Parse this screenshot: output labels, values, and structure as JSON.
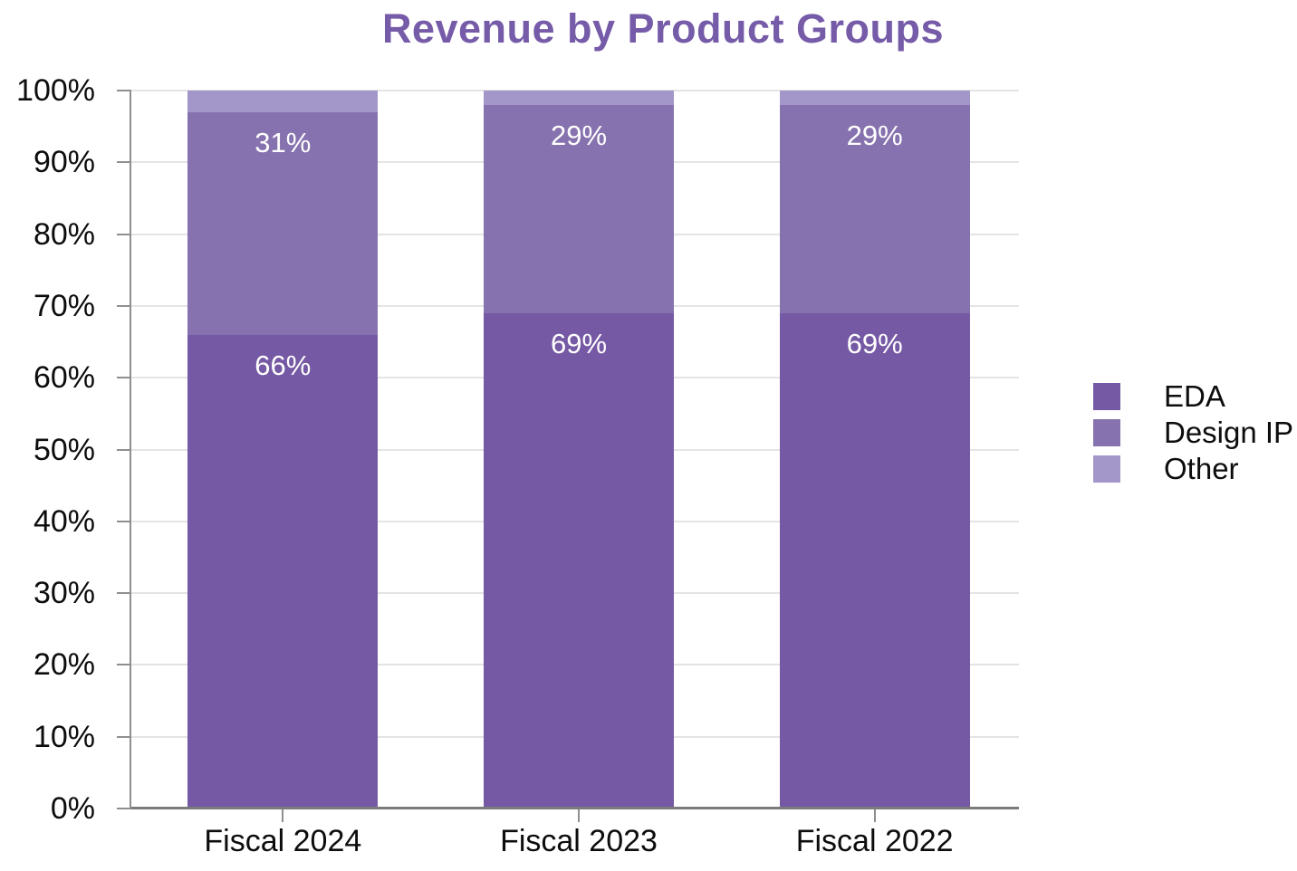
{
  "title": {
    "text": "Revenue by Product Groups",
    "color": "#755BA8"
  },
  "chart_data": {
    "type": "bar",
    "stacked": true,
    "percent_scale": true,
    "title": "Revenue by Product Groups",
    "xlabel": "",
    "ylabel": "",
    "categories": [
      "Fiscal 2024",
      "Fiscal 2023",
      "Fiscal 2022"
    ],
    "series": [
      {
        "name": "EDA",
        "color": "#7559A4",
        "values": [
          66,
          69,
          69
        ],
        "labels": [
          "66%",
          "69%",
          "69%"
        ]
      },
      {
        "name": "Design IP",
        "color": "#8672AE",
        "values": [
          31,
          29,
          29
        ],
        "labels": [
          "31%",
          "29%",
          "29%"
        ]
      },
      {
        "name": "Other",
        "color": "#A396C8",
        "values": [
          3,
          2,
          2
        ],
        "labels": [
          "",
          "",
          ""
        ]
      }
    ],
    "ylim": [
      0,
      100
    ],
    "ytick_labels": [
      "0%",
      "10%",
      "20%",
      "30%",
      "40%",
      "50%",
      "60%",
      "70%",
      "80%",
      "90%",
      "100%"
    ],
    "grid": true,
    "legend_position": "right"
  },
  "style": {
    "grid_color": "#e4e4e4",
    "axis_color": "#8f8f8f",
    "x_axis_color": "#7b7b7b",
    "label_text_color": "#0d0d0d",
    "bar_label_color": "#ffffff"
  }
}
